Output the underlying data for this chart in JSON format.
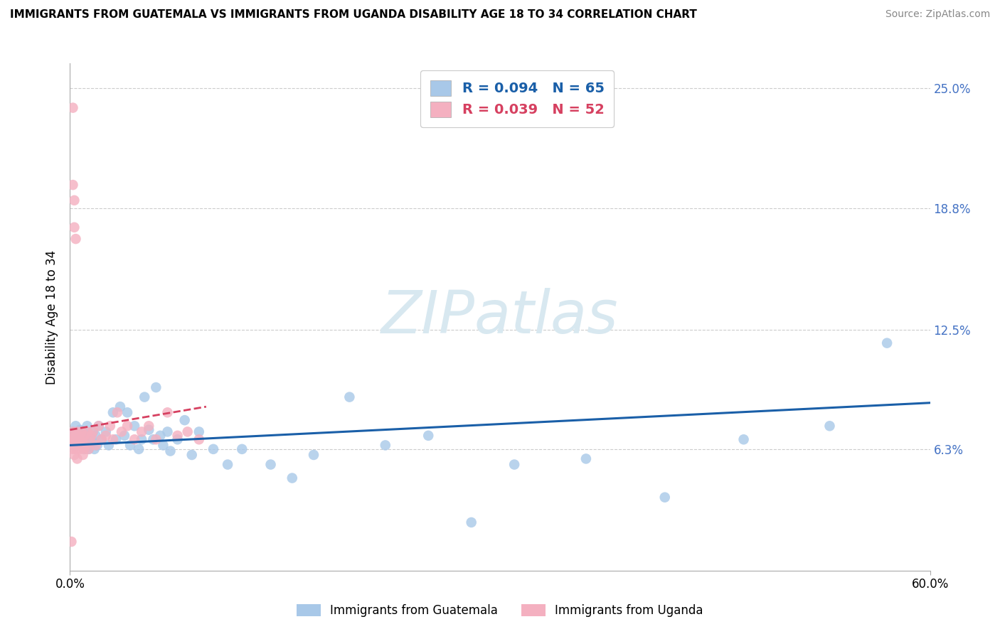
{
  "title": "IMMIGRANTS FROM GUATEMALA VS IMMIGRANTS FROM UGANDA DISABILITY AGE 18 TO 34 CORRELATION CHART",
  "source": "Source: ZipAtlas.com",
  "ylabel": "Disability Age 18 to 34",
  "xlim": [
    -0.005,
    0.62
  ],
  "ylim": [
    -0.01,
    0.27
  ],
  "plot_xlim": [
    0.0,
    0.6
  ],
  "plot_ylim": [
    0.0,
    0.263
  ],
  "ytick_labels": [
    "6.3%",
    "12.5%",
    "18.8%",
    "25.0%"
  ],
  "ytick_vals": [
    0.063,
    0.125,
    0.188,
    0.25
  ],
  "blue_color": "#a8c8e8",
  "pink_color": "#f4b0c0",
  "trend_blue_color": "#1a5fa8",
  "trend_pink_color": "#d64060",
  "watermark_color": "#d8e8f0",
  "blue_trend": [
    0.0,
    0.065,
    0.6,
    0.087
  ],
  "pink_trend": [
    0.0,
    0.073,
    0.095,
    0.085
  ],
  "blue_x": [
    0.001,
    0.002,
    0.003,
    0.003,
    0.004,
    0.005,
    0.005,
    0.006,
    0.007,
    0.007,
    0.008,
    0.009,
    0.009,
    0.01,
    0.01,
    0.011,
    0.012,
    0.013,
    0.014,
    0.015,
    0.016,
    0.017,
    0.018,
    0.019,
    0.02,
    0.022,
    0.025,
    0.027,
    0.03,
    0.032,
    0.035,
    0.038,
    0.04,
    0.042,
    0.045,
    0.048,
    0.05,
    0.052,
    0.055,
    0.058,
    0.06,
    0.063,
    0.065,
    0.068,
    0.07,
    0.075,
    0.08,
    0.085,
    0.09,
    0.1,
    0.11,
    0.12,
    0.14,
    0.155,
    0.17,
    0.195,
    0.22,
    0.25,
    0.28,
    0.31,
    0.36,
    0.415,
    0.47,
    0.53,
    0.57
  ],
  "blue_y": [
    0.068,
    0.072,
    0.07,
    0.065,
    0.075,
    0.068,
    0.072,
    0.065,
    0.07,
    0.073,
    0.065,
    0.068,
    0.072,
    0.063,
    0.07,
    0.068,
    0.075,
    0.063,
    0.065,
    0.068,
    0.072,
    0.063,
    0.07,
    0.065,
    0.075,
    0.068,
    0.072,
    0.065,
    0.082,
    0.068,
    0.085,
    0.07,
    0.082,
    0.065,
    0.075,
    0.063,
    0.068,
    0.09,
    0.073,
    0.068,
    0.095,
    0.07,
    0.065,
    0.072,
    0.062,
    0.068,
    0.078,
    0.06,
    0.072,
    0.063,
    0.055,
    0.063,
    0.055,
    0.048,
    0.06,
    0.09,
    0.065,
    0.07,
    0.025,
    0.055,
    0.058,
    0.038,
    0.068,
    0.075,
    0.118
  ],
  "pink_x": [
    0.001,
    0.001,
    0.002,
    0.002,
    0.002,
    0.003,
    0.003,
    0.003,
    0.004,
    0.004,
    0.005,
    0.005,
    0.005,
    0.006,
    0.006,
    0.007,
    0.007,
    0.008,
    0.008,
    0.009,
    0.009,
    0.01,
    0.01,
    0.011,
    0.012,
    0.013,
    0.014,
    0.015,
    0.016,
    0.018,
    0.02,
    0.022,
    0.025,
    0.028,
    0.03,
    0.033,
    0.036,
    0.04,
    0.045,
    0.05,
    0.055,
    0.06,
    0.068,
    0.075,
    0.082,
    0.09,
    0.002,
    0.003,
    0.003,
    0.004,
    0.002,
    0.001
  ],
  "pink_y": [
    0.065,
    0.07,
    0.068,
    0.063,
    0.072,
    0.065,
    0.068,
    0.06,
    0.07,
    0.063,
    0.068,
    0.072,
    0.058,
    0.065,
    0.07,
    0.063,
    0.068,
    0.065,
    0.072,
    0.06,
    0.068,
    0.063,
    0.07,
    0.065,
    0.072,
    0.063,
    0.068,
    0.07,
    0.072,
    0.065,
    0.075,
    0.068,
    0.07,
    0.075,
    0.068,
    0.082,
    0.072,
    0.075,
    0.068,
    0.072,
    0.075,
    0.068,
    0.082,
    0.07,
    0.072,
    0.068,
    0.2,
    0.192,
    0.178,
    0.172,
    0.24,
    0.015
  ]
}
